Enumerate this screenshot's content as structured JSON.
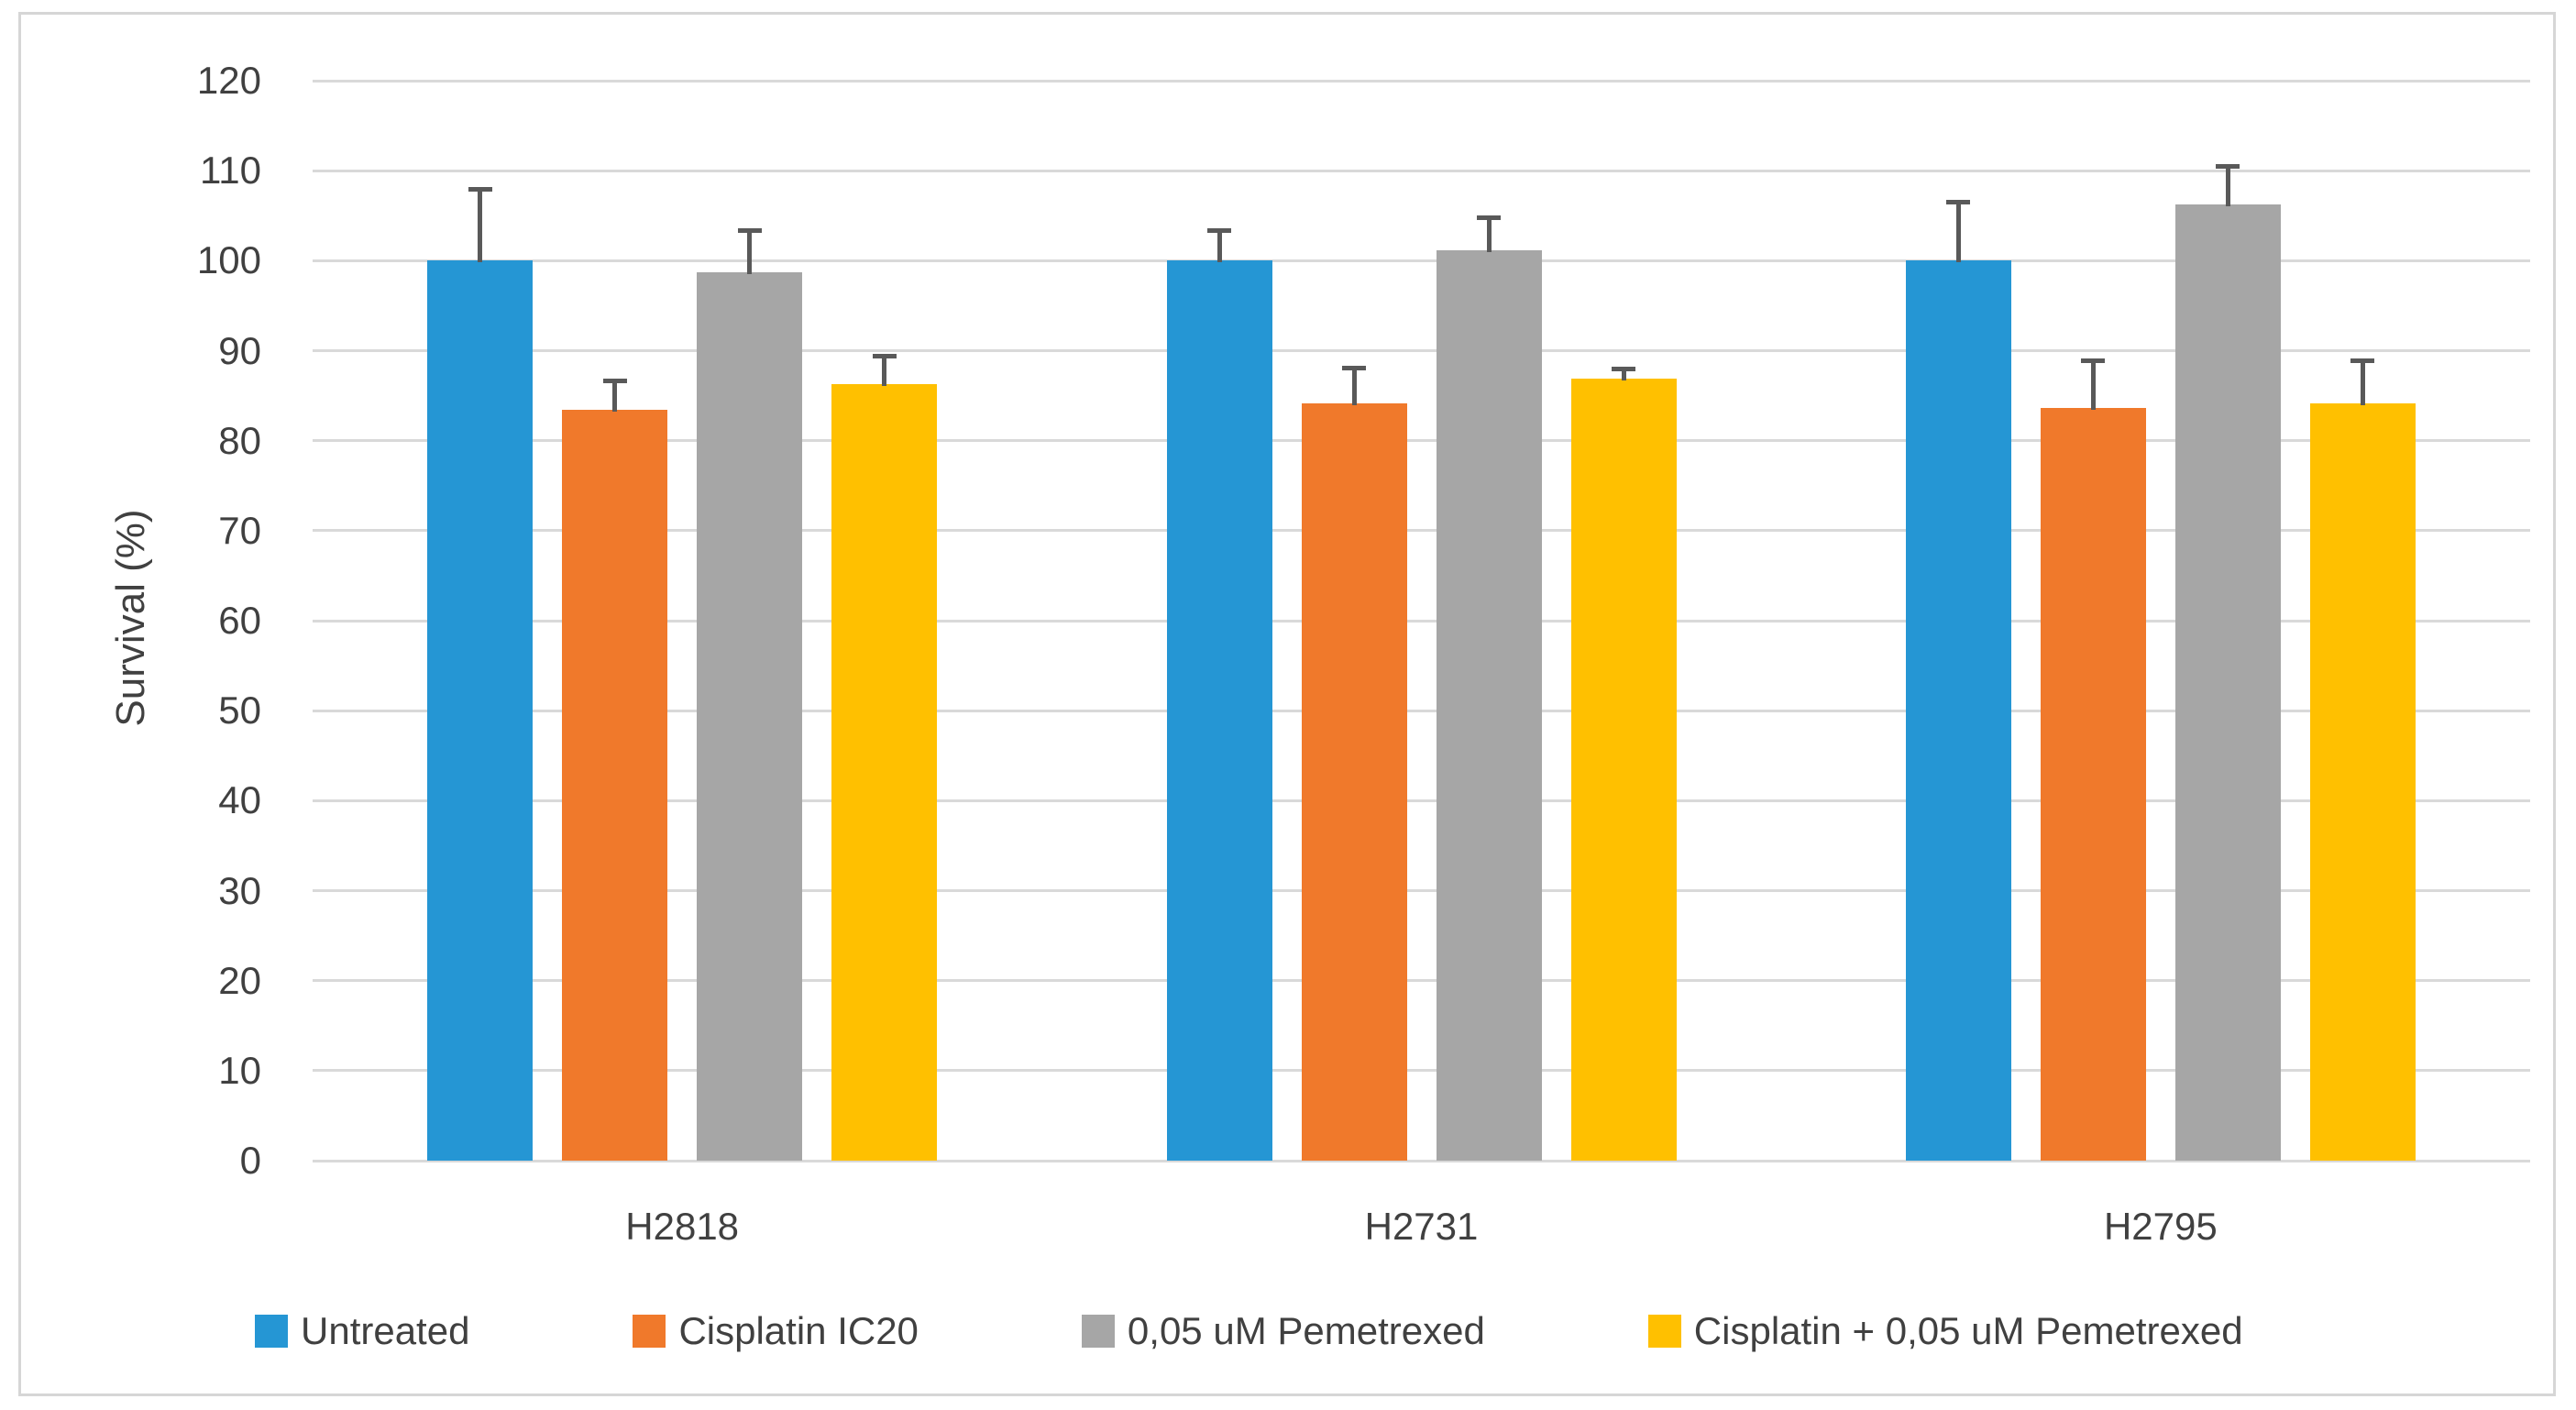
{
  "chart_data": {
    "type": "bar",
    "title": "",
    "xlabel": "",
    "ylabel": "Survival (%)",
    "ylim": [
      0,
      120
    ],
    "ytick_step": 10,
    "grid": true,
    "legend_position": "bottom",
    "categories": [
      "H2818",
      "H2731",
      "H2795"
    ],
    "series": [
      {
        "name": "Untreated",
        "color": "#2596d4",
        "values": [
          100.0,
          100.0,
          100.0
        ],
        "errors_plus": [
          8.0,
          3.4,
          6.6
        ]
      },
      {
        "name": "Cisplatin IC20",
        "color": "#f0792b",
        "values": [
          83.4,
          84.1,
          83.6
        ],
        "errors_plus": [
          3.3,
          4.0,
          5.3
        ]
      },
      {
        "name": "0,05 uM Pemetrexed",
        "color": "#a6a6a6",
        "values": [
          98.7,
          101.2,
          106.3
        ],
        "errors_plus": [
          4.7,
          3.6,
          4.2
        ]
      },
      {
        "name": "Cisplatin + 0,05 uM Pemetrexed",
        "color": "#ffc000",
        "values": [
          86.3,
          86.9,
          84.1
        ],
        "errors_plus": [
          3.1,
          1.1,
          4.8
        ]
      }
    ],
    "error_bar_color": "#595959",
    "gridline_color": "#d9d9d9",
    "frame_border_color": "#d6d6d6",
    "text_color": "#404040"
  }
}
